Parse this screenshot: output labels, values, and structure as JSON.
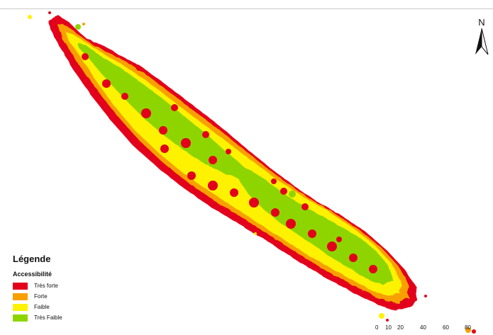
{
  "north": {
    "label": "N"
  },
  "legend": {
    "title": "Légende",
    "subtitle": "Accessibilité",
    "items": [
      {
        "label": "Très forte",
        "color": "#e3001b"
      },
      {
        "label": "Forte",
        "color": "#f7a000"
      },
      {
        "label": "Faible",
        "color": "#fff200"
      },
      {
        "label": "Très Faible",
        "color": "#8ed500"
      }
    ]
  },
  "scale_bar": {
    "ticks": [
      "0",
      "10",
      "20",
      "40",
      "60",
      "80"
    ]
  }
}
